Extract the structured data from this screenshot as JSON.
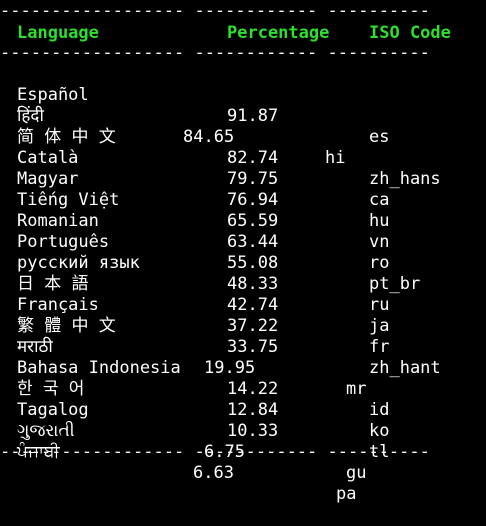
{
  "terminal": {
    "rule_top": "------------------ ------------ ----------",
    "rule_mid": "------------------ ------------ ----------",
    "rule_bottom": "------------------ ------------ ----------",
    "headers": {
      "language": "Language",
      "percentage": "Percentage",
      "iso_code": "ISO Code"
    },
    "header_color": "#2ee02e",
    "text_color": "#ffffff",
    "background_color": "#000000",
    "rows": [
      {
        "language": "Español",
        "percentage": "91.87",
        "iso": "es"
      },
      {
        "language": "हिंदी",
        "percentage": "84.65",
        "iso": "hi"
      },
      {
        "language": "简 体 中 文",
        "percentage": "82.74",
        "iso": "zh_hans"
      },
      {
        "language": "Català",
        "percentage": "79.75",
        "iso": "ca"
      },
      {
        "language": "Magyar",
        "percentage": "76.94",
        "iso": "hu"
      },
      {
        "language": "Tiếng Việt",
        "percentage": "65.59",
        "iso": "vn"
      },
      {
        "language": "Romanian",
        "percentage": "63.44",
        "iso": "ro"
      },
      {
        "language": "Português",
        "percentage": "55.08",
        "iso": "pt_br"
      },
      {
        "language": "русский язык",
        "percentage": "48.33",
        "iso": "ru"
      },
      {
        "language": "日 本 語",
        "percentage": "42.74",
        "iso": "ja"
      },
      {
        "language": "Français",
        "percentage": "37.22",
        "iso": "fr"
      },
      {
        "language": "繁 體 中 文",
        "percentage": "33.75",
        "iso": "zh_hant"
      },
      {
        "language": "मराठी",
        "percentage": "19.95",
        "iso": "mr"
      },
      {
        "language": "Bahasa Indonesia",
        "percentage": "14.22",
        "iso": "id"
      },
      {
        "language": "한 국 어",
        "percentage": "12.84",
        "iso": "ko"
      },
      {
        "language": "Tagalog",
        "percentage": "10.33",
        "iso": "tl"
      },
      {
        "language": "ગુજરાતી",
        "percentage": "6.75",
        "iso": "gu"
      },
      {
        "language": "ਪੰਜਾਬੀ",
        "percentage": "6.63",
        "iso": "pa"
      }
    ]
  }
}
